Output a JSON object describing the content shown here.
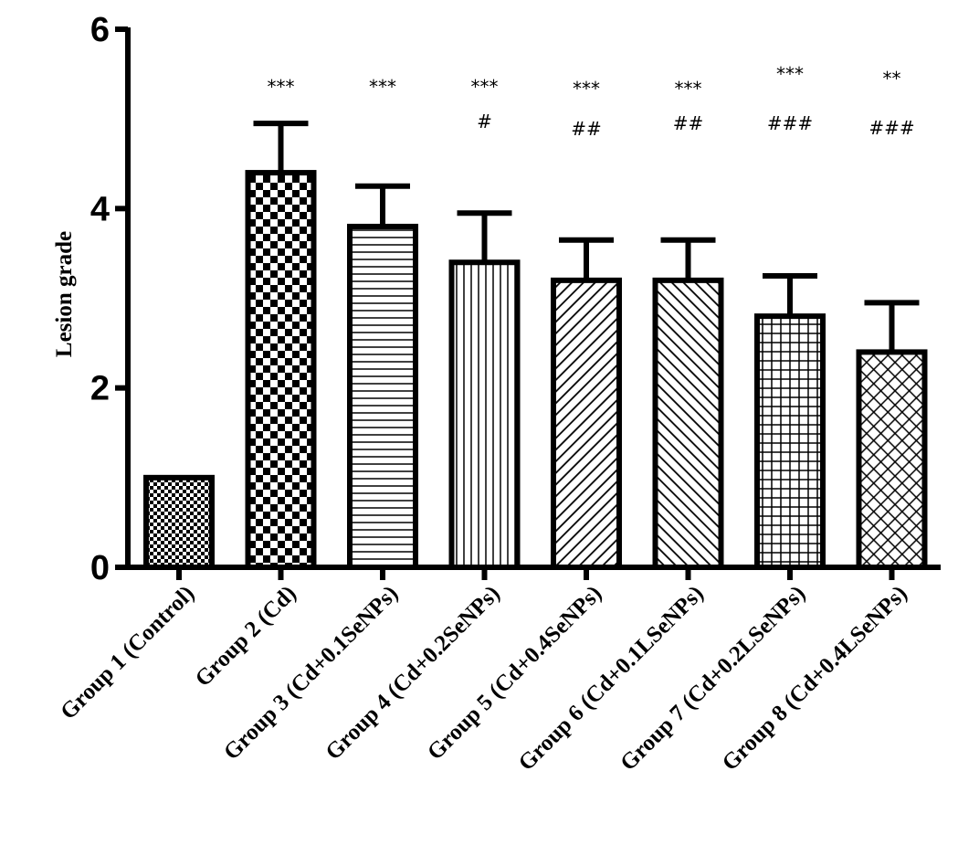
{
  "chart_data": {
    "type": "bar",
    "title": "",
    "xlabel": "",
    "ylabel": "Lesion grade",
    "ylim": [
      0,
      6
    ],
    "yticks": [
      "0",
      "2",
      "4",
      "6"
    ],
    "categories": [
      "Group 1 (Control)",
      "Group 2 (Cd)",
      "Group 3 (Cd+0.1SeNPs)",
      "Group 4 (Cd+0.2SeNPs)",
      "Group 5 (Cd+0.4SeNPs)",
      "Group 6 (Cd+0.1LSeNPs)",
      "Group 7 (Cd+0.2LSeNPs)",
      "Group 8 (Cd+0.4LSeNPs)"
    ],
    "values": [
      1.0,
      4.4,
      3.8,
      3.4,
      3.2,
      3.2,
      2.8,
      2.4
    ],
    "errors": [
      0,
      0.55,
      0.45,
      0.55,
      0.45,
      0.45,
      0.45,
      0.55
    ],
    "significance": [
      "",
      "***",
      "***",
      "***",
      "***",
      "***",
      "***",
      "**"
    ],
    "hash_marks": [
      "",
      "",
      "",
      "#",
      "##",
      "##",
      "###",
      "###"
    ],
    "patterns": [
      "fine-checker",
      "checker",
      "horizontal-lines",
      "vertical-lines",
      "diagonal-up",
      "diagonal-down",
      "grid",
      "crosshatch"
    ]
  }
}
